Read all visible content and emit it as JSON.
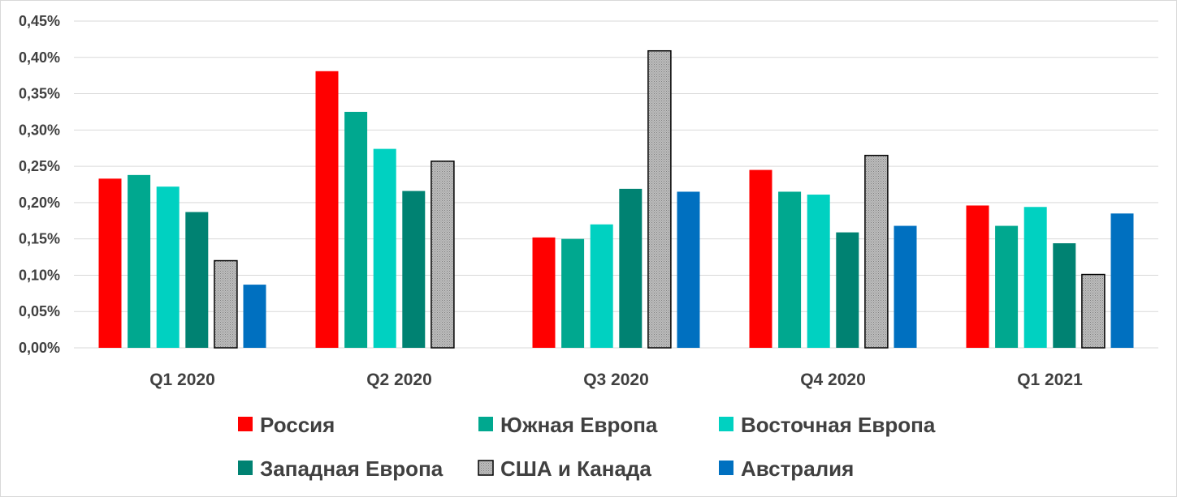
{
  "chart_data": {
    "type": "bar",
    "title": "",
    "xlabel": "",
    "ylabel": "",
    "categories": [
      "Q1 2020",
      "Q2 2020",
      "Q3 2020",
      "Q4 2020",
      "Q1 2021"
    ],
    "ylim": [
      0,
      0.45
    ],
    "yticks": [
      0,
      0.05,
      0.1,
      0.15,
      0.2,
      0.25,
      0.3,
      0.35,
      0.4,
      0.45
    ],
    "ytick_labels": [
      "0,00%",
      "0,05%",
      "0,10%",
      "0,15%",
      "0,20%",
      "0,25%",
      "0,30%",
      "0,35%",
      "0,40%",
      "0,45%"
    ],
    "value_unit": "%",
    "grid": true,
    "legend_position": "bottom",
    "series": [
      {
        "name": "Россия",
        "color": "#ff0000",
        "pattern": "solid",
        "values": [
          0.233,
          0.381,
          0.152,
          0.245,
          0.196
        ]
      },
      {
        "name": "Южная Европа",
        "color": "#00a88f",
        "pattern": "solid",
        "values": [
          0.238,
          0.325,
          0.15,
          0.215,
          0.168
        ]
      },
      {
        "name": "Восточная Европа",
        "color": "#00d1c1",
        "pattern": "solid",
        "values": [
          0.222,
          0.274,
          0.17,
          0.211,
          0.194
        ]
      },
      {
        "name": "Западная Европа",
        "color": "#008272",
        "pattern": "solid",
        "values": [
          0.187,
          0.216,
          0.219,
          0.159,
          0.144
        ]
      },
      {
        "name": "США и Канада",
        "color": "#b0b0b0",
        "pattern": "dotted-gray",
        "values": [
          0.12,
          0.257,
          0.409,
          0.265,
          0.101
        ]
      },
      {
        "name": "Австралия",
        "color": "#0070c0",
        "pattern": "solid",
        "values": [
          0.087,
          null,
          0.215,
          0.168,
          0.185
        ]
      }
    ]
  }
}
